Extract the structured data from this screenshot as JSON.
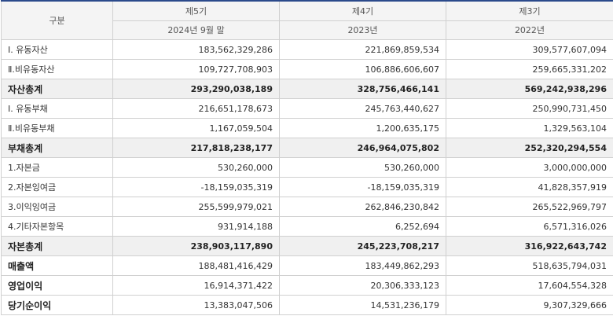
{
  "header": {
    "category": "구분",
    "periods": [
      {
        "label": "제5기",
        "sub": "2024년 9월 말"
      },
      {
        "label": "제4기",
        "sub": "2023년"
      },
      {
        "label": "제3기",
        "sub": "2022년"
      }
    ]
  },
  "rows": [
    {
      "label": "Ⅰ. 유동자산",
      "values": [
        "183,562,329,286",
        "221,869,859,534",
        "309,577,607,094"
      ]
    },
    {
      "label": "Ⅱ.비유동자산",
      "values": [
        "109,727,708,903",
        "106,886,606,607",
        "259,665,331,202"
      ]
    },
    {
      "label": "자산총계",
      "values": [
        "293,290,038,189",
        "328,756,466,141",
        "569,242,938,296"
      ]
    },
    {
      "label": "Ⅰ. 유동부채",
      "values": [
        "216,651,178,673",
        "245,763,440,627",
        "250,990,731,450"
      ]
    },
    {
      "label": "Ⅱ.비유동부채",
      "values": [
        "1,167,059,504",
        "1,200,635,175",
        "1,329,563,104"
      ]
    },
    {
      "label": "부채총계",
      "values": [
        "217,818,238,177",
        "246,964,075,802",
        "252,320,294,554"
      ]
    },
    {
      "label": "1.자본금",
      "values": [
        "530,260,000",
        "530,260,000",
        "3,000,000,000"
      ]
    },
    {
      "label": "2.자본잉여금",
      "values": [
        "-18,159,035,319",
        "-18,159,035,319",
        "41,828,357,919"
      ]
    },
    {
      "label": "3.이익잉여금",
      "values": [
        "255,599,979,021",
        "262,846,230,842",
        "265,522,969,797"
      ]
    },
    {
      "label": "4.기타자본항목",
      "values": [
        "931,914,188",
        "6,252,694",
        "6,571,316,026"
      ]
    },
    {
      "label": "자본총계",
      "values": [
        "238,903,117,890",
        "245,223,708,217",
        "316,922,643,742"
      ]
    },
    {
      "label": "매출액",
      "values": [
        "188,481,416,429",
        "183,449,862,293",
        "518,635,794,031"
      ]
    },
    {
      "label": "영업이익",
      "values": [
        "16,914,371,422",
        "20,306,333,123",
        "17,604,554,328"
      ]
    },
    {
      "label": "당기순이익",
      "values": [
        "13,383,047,506",
        "14,531,236,179",
        "9,307,329,666"
      ]
    }
  ]
}
